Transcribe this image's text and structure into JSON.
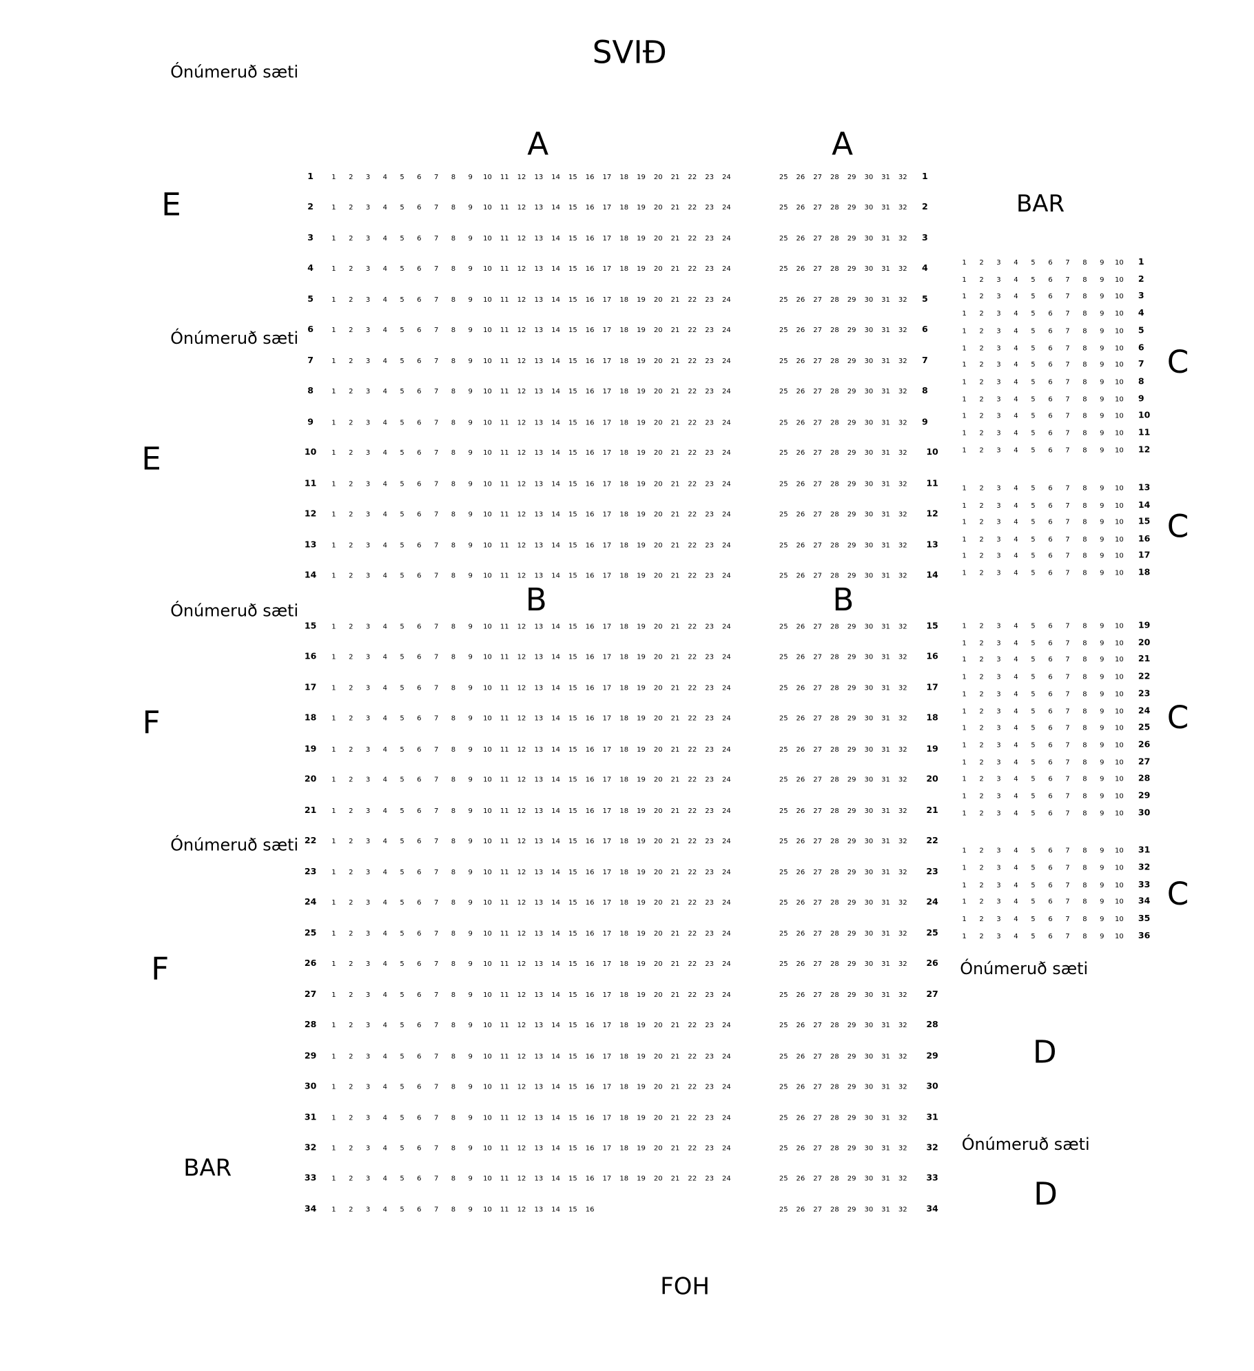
{
  "stage_label": "SVIÐ",
  "foh_label": "FOH",
  "unnumbered_label": "Ónúmeruð sæti",
  "sections": {
    "a_left": "A",
    "a_right": "A",
    "b_left": "B",
    "b_right": "B",
    "e_1": "E",
    "e_2": "E",
    "f_1": "F",
    "f_2": "F",
    "c_1": "C",
    "c_2": "C",
    "c_3": "C",
    "c_4": "C",
    "d_1": "D",
    "d_2": "D",
    "bar_top": "BAR",
    "bar_bottom": "BAR"
  },
  "main_rows": [
    {
      "row": 1,
      "left": [
        1,
        24
      ],
      "right": [
        25,
        32
      ]
    },
    {
      "row": 2,
      "left": [
        1,
        24
      ],
      "right": [
        25,
        32
      ]
    },
    {
      "row": 3,
      "left": [
        1,
        24
      ],
      "right": [
        25,
        32
      ]
    },
    {
      "row": 4,
      "left": [
        1,
        24
      ],
      "right": [
        25,
        32
      ]
    },
    {
      "row": 5,
      "left": [
        1,
        24
      ],
      "right": [
        25,
        32
      ]
    },
    {
      "row": 6,
      "left": [
        1,
        24
      ],
      "right": [
        25,
        32
      ]
    },
    {
      "row": 7,
      "left": [
        1,
        24
      ],
      "right": [
        25,
        32
      ]
    },
    {
      "row": 8,
      "left": [
        1,
        24
      ],
      "right": [
        25,
        32
      ]
    },
    {
      "row": 9,
      "left": [
        1,
        24
      ],
      "right": [
        25,
        32
      ]
    },
    {
      "row": 10,
      "left": [
        1,
        24
      ],
      "right": [
        25,
        32
      ]
    },
    {
      "row": 11,
      "left": [
        1,
        24
      ],
      "right": [
        25,
        32
      ]
    },
    {
      "row": 12,
      "left": [
        1,
        24
      ],
      "right": [
        25,
        32
      ]
    },
    {
      "row": 13,
      "left": [
        1,
        24
      ],
      "right": [
        25,
        32
      ]
    },
    {
      "row": 14,
      "left": [
        1,
        24
      ],
      "right": [
        25,
        32
      ]
    },
    {
      "row": 15,
      "left": [
        1,
        24
      ],
      "right": [
        25,
        32
      ]
    },
    {
      "row": 16,
      "left": [
        1,
        24
      ],
      "right": [
        25,
        32
      ]
    },
    {
      "row": 17,
      "left": [
        1,
        24
      ],
      "right": [
        25,
        32
      ]
    },
    {
      "row": 18,
      "left": [
        1,
        24
      ],
      "right": [
        25,
        32
      ]
    },
    {
      "row": 19,
      "left": [
        1,
        24
      ],
      "right": [
        25,
        32
      ]
    },
    {
      "row": 20,
      "left": [
        1,
        24
      ],
      "right": [
        25,
        32
      ]
    },
    {
      "row": 21,
      "left": [
        1,
        24
      ],
      "right": [
        25,
        32
      ]
    },
    {
      "row": 22,
      "left": [
        1,
        24
      ],
      "right": [
        25,
        32
      ]
    },
    {
      "row": 23,
      "left": [
        1,
        24
      ],
      "right": [
        25,
        32
      ]
    },
    {
      "row": 24,
      "left": [
        1,
        24
      ],
      "right": [
        25,
        32
      ]
    },
    {
      "row": 25,
      "left": [
        1,
        24
      ],
      "right": [
        25,
        32
      ]
    },
    {
      "row": 26,
      "left": [
        1,
        24
      ],
      "right": [
        25,
        32
      ]
    },
    {
      "row": 27,
      "left": [
        1,
        24
      ],
      "right": [
        25,
        32
      ]
    },
    {
      "row": 28,
      "left": [
        1,
        24
      ],
      "right": [
        25,
        32
      ]
    },
    {
      "row": 29,
      "left": [
        1,
        24
      ],
      "right": [
        25,
        32
      ]
    },
    {
      "row": 30,
      "left": [
        1,
        24
      ],
      "right": [
        25,
        32
      ]
    },
    {
      "row": 31,
      "left": [
        1,
        24
      ],
      "right": [
        25,
        32
      ]
    },
    {
      "row": 32,
      "left": [
        1,
        24
      ],
      "right": [
        25,
        32
      ]
    },
    {
      "row": 33,
      "left": [
        1,
        24
      ],
      "right": [
        25,
        32
      ]
    },
    {
      "row": 34,
      "left": [
        1,
        16
      ],
      "right": [
        25,
        32
      ]
    }
  ],
  "c_rows": {
    "first": 1,
    "last": 36,
    "seats": [
      1,
      10
    ]
  }
}
